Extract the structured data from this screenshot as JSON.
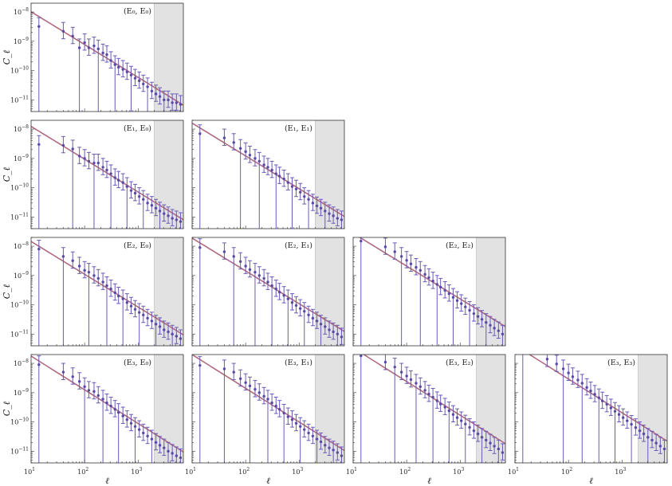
{
  "figure": {
    "ylabel": "C_ℓ",
    "xlabel": "ℓ",
    "colors": {
      "points": "#5a49a6",
      "errorbars": "#6a5ab8",
      "model": "#b06a7e",
      "scalecut_shade": "#e2e2e2",
      "axes": "#333333"
    }
  },
  "chart_data": [
    {
      "type": "scatter",
      "title": "(E₀, E₀)",
      "pair": [
        0,
        0
      ],
      "row": 0,
      "col": 0,
      "xlim": [
        10,
        7000
      ],
      "ylim": [
        4e-12,
        2e-08
      ],
      "xscale": "log",
      "yscale": "log",
      "scale_cut_ell": 2000,
      "model": {
        "amplitude": 7e-09,
        "slope": -1.12
      },
      "x": [
        14,
        40,
        60,
        80,
        100,
        120,
        150,
        180,
        220,
        260,
        310,
        370,
        430,
        520,
        620,
        740,
        880,
        1050,
        1250,
        1500,
        1800,
        2150,
        2550,
        3050,
        3650,
        4350,
        5200,
        6200
      ],
      "y": [
        3.2e-09,
        2.2e-09,
        1.5e-09,
        6e-10,
        9e-10,
        6e-10,
        7e-10,
        5.5e-10,
        4e-10,
        3.5e-10,
        2.2e-10,
        1.6e-10,
        1.3e-10,
        1.1e-10,
        9e-11,
        7e-11,
        5.5e-11,
        4.5e-11,
        3.5e-11,
        2.8e-11,
        2e-11,
        1.6e-11,
        1.3e-11,
        1e-11,
        1e-11,
        8e-12,
        8e-12,
        7e-12
      ]
    },
    {
      "type": "scatter",
      "title": "(E₁, E₀)",
      "pair": [
        1,
        0
      ],
      "row": 1,
      "col": 0,
      "xlim": [
        10,
        7000
      ],
      "ylim": [
        4e-12,
        2e-08
      ],
      "xscale": "log",
      "yscale": "log",
      "scale_cut_ell": 2000,
      "model": {
        "amplitude": 8.5e-09,
        "slope": -1.12
      },
      "x": [
        14,
        40,
        60,
        80,
        100,
        120,
        150,
        180,
        220,
        260,
        310,
        370,
        430,
        520,
        620,
        740,
        880,
        1050,
        1250,
        1500,
        1800,
        2150,
        2550,
        3050,
        3650,
        4350,
        5200,
        6200
      ],
      "y": [
        3e-09,
        2.8e-09,
        2.1e-09,
        1.2e-09,
        1e-09,
        8e-10,
        7e-10,
        7e-10,
        5e-10,
        4e-10,
        3e-10,
        2.2e-10,
        1.8e-10,
        1.5e-10,
        1.1e-10,
        8e-11,
        6.5e-11,
        5e-11,
        4e-11,
        3e-11,
        2.5e-11,
        2e-11,
        1.6e-11,
        1.3e-11,
        1.1e-11,
        9e-12,
        8e-12,
        7e-12
      ]
    },
    {
      "type": "scatter",
      "title": "(E₁, E₁)",
      "pair": [
        1,
        1
      ],
      "row": 1,
      "col": 1,
      "xlim": [
        10,
        7000
      ],
      "ylim": [
        4e-12,
        2e-08
      ],
      "xscale": "log",
      "yscale": "log",
      "scale_cut_ell": 2000,
      "model": {
        "amplitude": 1.1e-08,
        "slope": -1.12
      },
      "x": [
        14,
        40,
        60,
        80,
        100,
        120,
        150,
        180,
        220,
        260,
        310,
        370,
        430,
        520,
        620,
        740,
        880,
        1050,
        1250,
        1500,
        1800,
        2150,
        2550,
        3050,
        3650,
        4350,
        5200,
        6200
      ],
      "y": [
        7e-09,
        5e-09,
        3.5e-09,
        2.2e-09,
        1.7e-09,
        1.3e-09,
        1e-09,
        8e-10,
        6e-10,
        5e-10,
        4e-10,
        3e-10,
        2.5e-10,
        2e-10,
        1.5e-10,
        1.1e-10,
        9e-11,
        7e-11,
        5e-11,
        4e-11,
        3e-11,
        2.4e-11,
        2e-11,
        1.6e-11,
        1.3e-11,
        1.1e-11,
        9e-12,
        8e-12
      ]
    },
    {
      "type": "scatter",
      "title": "(E₂, E₀)",
      "pair": [
        2,
        0
      ],
      "row": 2,
      "col": 0,
      "xlim": [
        10,
        7000
      ],
      "ylim": [
        4e-12,
        2e-08
      ],
      "xscale": "log",
      "yscale": "log",
      "scale_cut_ell": 2000,
      "model": {
        "amplitude": 1e-08,
        "slope": -1.12
      },
      "x": [
        14,
        40,
        60,
        80,
        100,
        120,
        150,
        180,
        220,
        260,
        310,
        370,
        430,
        520,
        620,
        740,
        880,
        1050,
        1250,
        1500,
        1800,
        2150,
        2550,
        3050,
        3650,
        4350,
        5200,
        6200
      ],
      "y": [
        8e-09,
        4.5e-09,
        3.2e-09,
        2.1e-09,
        1.5e-09,
        1.3e-09,
        1e-09,
        8e-10,
        6e-10,
        4.5e-10,
        3.5e-10,
        2.6e-10,
        2e-10,
        1.6e-10,
        1.2e-10,
        9e-11,
        7e-11,
        5.5e-11,
        4.5e-11,
        3.5e-11,
        2.8e-11,
        2.2e-11,
        1.8e-11,
        1.4e-11,
        1.2e-11,
        1e-11,
        8.5e-12,
        7e-12
      ]
    },
    {
      "type": "scatter",
      "title": "(E₂, E₁)",
      "pair": [
        2,
        1
      ],
      "row": 2,
      "col": 1,
      "xlim": [
        10,
        7000
      ],
      "ylim": [
        4e-12,
        2e-08
      ],
      "xscale": "log",
      "yscale": "log",
      "scale_cut_ell": 2000,
      "model": {
        "amplitude": 1.3e-08,
        "slope": -1.12
      },
      "x": [
        14,
        40,
        60,
        80,
        100,
        120,
        150,
        180,
        220,
        260,
        310,
        370,
        430,
        520,
        620,
        740,
        880,
        1050,
        1250,
        1500,
        1800,
        2150,
        2550,
        3050,
        3650,
        4350,
        5200,
        6200
      ],
      "y": [
        9e-09,
        6.5e-09,
        4.5e-09,
        3e-09,
        2.1e-09,
        1.6e-09,
        1.3e-09,
        1e-09,
        8e-10,
        6e-10,
        4.5e-10,
        3.5e-10,
        2.7e-10,
        2.1e-10,
        1.6e-10,
        1.2e-10,
        9.5e-11,
        7.5e-11,
        6e-11,
        4.5e-11,
        3.5e-11,
        2.8e-11,
        2.2e-11,
        1.8e-11,
        1.4e-11,
        1.2e-11,
        1e-11,
        8e-12
      ]
    },
    {
      "type": "scatter",
      "title": "(E₂, E₂)",
      "pair": [
        2,
        2
      ],
      "row": 2,
      "col": 2,
      "xlim": [
        10,
        7000
      ],
      "ylim": [
        4e-12,
        2e-08
      ],
      "xscale": "log",
      "yscale": "log",
      "scale_cut_ell": 2000,
      "model": {
        "amplitude": 1.9e-08,
        "slope": -1.12
      },
      "x": [
        14,
        40,
        60,
        80,
        100,
        120,
        150,
        180,
        220,
        260,
        310,
        370,
        430,
        520,
        620,
        740,
        880,
        1050,
        1250,
        1500,
        1800,
        2150,
        2550,
        3050,
        3650,
        4350,
        5200,
        6200
      ],
      "y": [
        1.5e-08,
        9.5e-09,
        6.5e-09,
        4.5e-09,
        3.3e-09,
        2.5e-09,
        1.9e-09,
        1.5e-09,
        1.1e-09,
        8.5e-10,
        6.5e-10,
        5e-10,
        4e-10,
        3.1e-10,
        2.4e-10,
        1.8e-10,
        1.4e-10,
        1.1e-10,
        8.5e-11,
        6.5e-11,
        5e-11,
        4e-11,
        3.2e-11,
        2.5e-11,
        2e-11,
        1.6e-11,
        1.3e-11,
        1e-11
      ]
    },
    {
      "type": "scatter",
      "title": "(E₃, E₀)",
      "pair": [
        3,
        0
      ],
      "row": 3,
      "col": 0,
      "xlim": [
        10,
        7000
      ],
      "ylim": [
        4e-12,
        2e-08
      ],
      "xscale": "log",
      "yscale": "log",
      "scale_cut_ell": 2000,
      "model": {
        "amplitude": 1.2e-08,
        "slope": -1.15
      },
      "x": [
        14,
        40,
        60,
        80,
        100,
        120,
        150,
        180,
        220,
        260,
        310,
        370,
        430,
        520,
        620,
        740,
        880,
        1050,
        1250,
        1500,
        1800,
        2150,
        2550,
        3050,
        3650,
        4350,
        5200,
        6200
      ],
      "y": [
        9e-09,
        5e-09,
        3.5e-09,
        2.4e-09,
        1.6e-09,
        1.2e-09,
        1.1e-09,
        8e-10,
        6e-10,
        4.5e-10,
        3.5e-10,
        2.7e-10,
        2.1e-10,
        1.6e-10,
        1.2e-10,
        9e-11,
        7e-11,
        5.5e-11,
        4.2e-11,
        3.3e-11,
        2.6e-11,
        2e-11,
        1.6e-11,
        1.3e-11,
        1e-11,
        8.5e-12,
        7e-12,
        6e-12
      ]
    },
    {
      "type": "scatter",
      "title": "(E₃, E₁)",
      "pair": [
        3,
        1
      ],
      "row": 3,
      "col": 1,
      "xlim": [
        10,
        7000
      ],
      "ylim": [
        4e-12,
        2e-08
      ],
      "xscale": "log",
      "yscale": "log",
      "scale_cut_ell": 2000,
      "model": {
        "amplitude": 1.35e-08,
        "slope": -1.15
      },
      "x": [
        14,
        40,
        60,
        80,
        100,
        120,
        150,
        180,
        220,
        260,
        310,
        370,
        430,
        520,
        620,
        740,
        880,
        1050,
        1250,
        1500,
        1800,
        2150,
        2550,
        3050,
        3650,
        4350,
        5200,
        6200
      ],
      "y": [
        8.5e-09,
        6.5e-09,
        5e-09,
        3e-09,
        2.2e-09,
        1.7e-09,
        1.3e-09,
        1e-09,
        7.5e-10,
        6e-10,
        4.5e-10,
        3.5e-10,
        2.7e-10,
        2e-10,
        1.5e-10,
        1.2e-10,
        9e-11,
        7e-11,
        5.5e-11,
        4.2e-11,
        3.3e-11,
        2.6e-11,
        2.1e-11,
        1.6e-11,
        1.3e-11,
        1.1e-11,
        9e-12,
        7e-12
      ]
    },
    {
      "type": "scatter",
      "title": "(E₃, E₂)",
      "pair": [
        3,
        2
      ],
      "row": 3,
      "col": 2,
      "xlim": [
        10,
        7000
      ],
      "ylim": [
        4e-12,
        2e-08
      ],
      "xscale": "log",
      "yscale": "log",
      "scale_cut_ell": 2000,
      "model": {
        "amplitude": 2.3e-08,
        "slope": -1.15
      },
      "x": [
        14,
        40,
        60,
        80,
        100,
        120,
        150,
        180,
        220,
        260,
        310,
        370,
        430,
        520,
        620,
        740,
        880,
        1050,
        1250,
        1500,
        1800,
        2150,
        2550,
        3050,
        3650,
        4350,
        5200,
        6200
      ],
      "y": [
        1.8e-08,
        1.1e-08,
        7.5e-09,
        5e-09,
        3.7e-09,
        2.8e-09,
        2.1e-09,
        1.6e-09,
        1.2e-09,
        9e-10,
        7e-10,
        5.3e-10,
        4.1e-10,
        3.2e-10,
        2.4e-10,
        1.8e-10,
        1.4e-10,
        1.1e-10,
        8.5e-11,
        6.5e-11,
        5e-11,
        3.9e-11,
        3e-11,
        2.4e-11,
        1.9e-11,
        1.5e-11,
        1.2e-11,
        9e-12
      ]
    },
    {
      "type": "scatter",
      "title": "(E₃, E₃)",
      "pair": [
        3,
        3
      ],
      "row": 3,
      "col": 3,
      "xlim": [
        10,
        7000
      ],
      "ylim": [
        4e-12,
        2e-08
      ],
      "xscale": "log",
      "yscale": "log",
      "scale_cut_ell": 2000,
      "model": {
        "amplitude": 2.8e-08,
        "slope": -1.15
      },
      "x": [
        14,
        40,
        60,
        80,
        100,
        120,
        150,
        180,
        220,
        260,
        310,
        370,
        430,
        520,
        620,
        740,
        880,
        1050,
        1250,
        1500,
        1800,
        2150,
        2550,
        3050,
        3650,
        4350,
        5200,
        6200
      ],
      "y": [
        2.2e-08,
        1.4e-08,
        9.5e-09,
        6.5e-09,
        4.7e-09,
        3.5e-09,
        2.7e-09,
        2.1e-09,
        1.5e-09,
        1.15e-09,
        8.8e-10,
        6.7e-10,
        5.2e-10,
        4e-10,
        3e-10,
        2.3e-10,
        1.8e-10,
        1.4e-10,
        1.1e-10,
        8.3e-11,
        6.4e-11,
        5e-11,
        3.9e-11,
        3e-11,
        2.4e-11,
        1.9e-11,
        1.5e-11,
        1.2e-11
      ]
    }
  ]
}
